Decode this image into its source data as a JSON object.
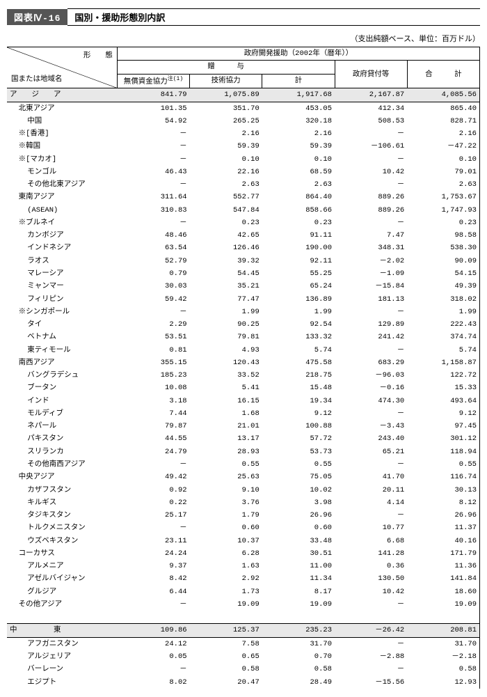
{
  "title_tag": "図表Ⅳ-16",
  "title_text": "国別・援助形態別内訳",
  "unit_note": "（支出純額ベース、単位：百万ドル）",
  "header": {
    "diag_top": "形　　態",
    "diag_bottom": "国または地域名",
    "super": "政府開発援助（2002年（暦年））",
    "grants": "贈　　　与",
    "loans": "政府貸付等",
    "total": "合　　　計",
    "col1": "無償資金協力",
    "col1_note": "注(1)",
    "col2": "技術協力",
    "col3": "計"
  },
  "rows": [
    {
      "section": true,
      "name": "ア　　ジ　　ア",
      "v": [
        "841.79",
        "1,075.89",
        "1,917.68",
        "2,167.87",
        "4,085.56"
      ]
    },
    {
      "indent": 1,
      "name": "北東アジア",
      "v": [
        "101.35",
        "351.70",
        "453.05",
        "412.34",
        "865.40"
      ]
    },
    {
      "indent": 2,
      "name": "中国",
      "v": [
        "54.92",
        "265.25",
        "320.18",
        "508.53",
        "828.71"
      ]
    },
    {
      "indent": 1,
      "name": "※[香港]",
      "v": [
        "－",
        "2.16",
        "2.16",
        "－",
        "2.16"
      ]
    },
    {
      "indent": 1,
      "name": "※韓国",
      "v": [
        "－",
        "59.39",
        "59.39",
        "－106.61",
        "－47.22"
      ]
    },
    {
      "indent": 1,
      "name": "※[マカオ]",
      "v": [
        "－",
        "0.10",
        "0.10",
        "－",
        "0.10"
      ]
    },
    {
      "indent": 2,
      "name": "モンゴル",
      "v": [
        "46.43",
        "22.16",
        "68.59",
        "10.42",
        "79.01"
      ]
    },
    {
      "indent": 2,
      "name": "その他北東アジア",
      "v": [
        "－",
        "2.63",
        "2.63",
        "－",
        "2.63"
      ]
    },
    {
      "indent": 1,
      "name": "東南アジア",
      "v": [
        "311.64",
        "552.77",
        "864.40",
        "889.26",
        "1,753.67"
      ]
    },
    {
      "indent": 2,
      "name": "(ASEAN)",
      "v": [
        "310.83",
        "547.84",
        "858.66",
        "889.26",
        "1,747.93"
      ]
    },
    {
      "indent": 1,
      "name": "※ブルネイ",
      "v": [
        "－",
        "0.23",
        "0.23",
        "－",
        "0.23"
      ]
    },
    {
      "indent": 2,
      "name": "カンボジア",
      "v": [
        "48.46",
        "42.65",
        "91.11",
        "7.47",
        "98.58"
      ]
    },
    {
      "indent": 2,
      "name": "インドネシア",
      "v": [
        "63.54",
        "126.46",
        "190.00",
        "348.31",
        "538.30"
      ]
    },
    {
      "indent": 2,
      "name": "ラオス",
      "v": [
        "52.79",
        "39.32",
        "92.11",
        "－2.02",
        "90.09"
      ]
    },
    {
      "indent": 2,
      "name": "マレーシア",
      "v": [
        "0.79",
        "54.45",
        "55.25",
        "－1.09",
        "54.15"
      ]
    },
    {
      "indent": 2,
      "name": "ミャンマー",
      "v": [
        "30.03",
        "35.21",
        "65.24",
        "－15.84",
        "49.39"
      ]
    },
    {
      "indent": 2,
      "name": "フィリピン",
      "v": [
        "59.42",
        "77.47",
        "136.89",
        "181.13",
        "318.02"
      ]
    },
    {
      "indent": 1,
      "name": "※シンガポール",
      "v": [
        "－",
        "1.99",
        "1.99",
        "－",
        "1.99"
      ]
    },
    {
      "indent": 2,
      "name": "タイ",
      "v": [
        "2.29",
        "90.25",
        "92.54",
        "129.89",
        "222.43"
      ]
    },
    {
      "indent": 2,
      "name": "ベトナム",
      "v": [
        "53.51",
        "79.81",
        "133.32",
        "241.42",
        "374.74"
      ]
    },
    {
      "indent": 2,
      "name": "東ティモール",
      "v": [
        "0.81",
        "4.93",
        "5.74",
        "－",
        "5.74"
      ]
    },
    {
      "indent": 1,
      "name": "南西アジア",
      "v": [
        "355.15",
        "120.43",
        "475.58",
        "683.29",
        "1,158.87"
      ]
    },
    {
      "indent": 2,
      "name": "バングラデシュ",
      "v": [
        "185.23",
        "33.52",
        "218.75",
        "－96.03",
        "122.72"
      ]
    },
    {
      "indent": 2,
      "name": "ブータン",
      "v": [
        "10.08",
        "5.41",
        "15.48",
        "－0.16",
        "15.33"
      ]
    },
    {
      "indent": 2,
      "name": "インド",
      "v": [
        "3.18",
        "16.15",
        "19.34",
        "474.30",
        "493.64"
      ]
    },
    {
      "indent": 2,
      "name": "モルディブ",
      "v": [
        "7.44",
        "1.68",
        "9.12",
        "－",
        "9.12"
      ]
    },
    {
      "indent": 2,
      "name": "ネパール",
      "v": [
        "79.87",
        "21.01",
        "100.88",
        "－3.43",
        "97.45"
      ]
    },
    {
      "indent": 2,
      "name": "パキスタン",
      "v": [
        "44.55",
        "13.17",
        "57.72",
        "243.40",
        "301.12"
      ]
    },
    {
      "indent": 2,
      "name": "スリランカ",
      "v": [
        "24.79",
        "28.93",
        "53.73",
        "65.21",
        "118.94"
      ]
    },
    {
      "indent": 2,
      "name": "その他南西アジア",
      "v": [
        "－",
        "0.55",
        "0.55",
        "－",
        "0.55"
      ]
    },
    {
      "indent": 1,
      "name": "中央アジア",
      "v": [
        "49.42",
        "25.63",
        "75.05",
        "41.70",
        "116.74"
      ]
    },
    {
      "indent": 2,
      "name": "カザフスタン",
      "v": [
        "0.92",
        "9.10",
        "10.02",
        "20.11",
        "30.13"
      ]
    },
    {
      "indent": 2,
      "name": "キルギス",
      "v": [
        "0.22",
        "3.76",
        "3.98",
        "4.14",
        "8.12"
      ]
    },
    {
      "indent": 2,
      "name": "タジキスタン",
      "v": [
        "25.17",
        "1.79",
        "26.96",
        "－",
        "26.96"
      ]
    },
    {
      "indent": 2,
      "name": "トルクメニスタン",
      "v": [
        "－",
        "0.60",
        "0.60",
        "10.77",
        "11.37"
      ]
    },
    {
      "indent": 2,
      "name": "ウズベキスタン",
      "v": [
        "23.11",
        "10.37",
        "33.48",
        "6.68",
        "40.16"
      ]
    },
    {
      "indent": 1,
      "name": "コーカサス",
      "v": [
        "24.24",
        "6.28",
        "30.51",
        "141.28",
        "171.79"
      ]
    },
    {
      "indent": 2,
      "name": "アルメニア",
      "v": [
        "9.37",
        "1.63",
        "11.00",
        "0.36",
        "11.36"
      ]
    },
    {
      "indent": 2,
      "name": "アゼルバイジャン",
      "v": [
        "8.42",
        "2.92",
        "11.34",
        "130.50",
        "141.84"
      ]
    },
    {
      "indent": 2,
      "name": "グルジア",
      "v": [
        "6.44",
        "1.73",
        "8.17",
        "10.42",
        "18.60"
      ]
    },
    {
      "indent": 1,
      "name": "その他アジア",
      "v": [
        "－",
        "19.09",
        "19.09",
        "－",
        "19.09"
      ]
    },
    {
      "blank": true
    },
    {
      "section": true,
      "name": "中　　　　　東",
      "v": [
        "109.86",
        "125.37",
        "235.23",
        "－26.42",
        "208.81"
      ]
    },
    {
      "indent": 2,
      "name": "アフガニスタン",
      "v": [
        "24.12",
        "7.58",
        "31.70",
        "－",
        "31.70"
      ]
    },
    {
      "indent": 2,
      "name": "アルジェリア",
      "v": [
        "0.05",
        "0.65",
        "0.70",
        "－2.88",
        "－2.18"
      ]
    },
    {
      "indent": 2,
      "name": "バーレーン",
      "v": [
        "－",
        "0.58",
        "0.58",
        "－",
        "0.58"
      ]
    },
    {
      "indent": 2,
      "name": "エジプト",
      "v": [
        "8.02",
        "20.47",
        "28.49",
        "－15.56",
        "12.93"
      ]
    }
  ]
}
